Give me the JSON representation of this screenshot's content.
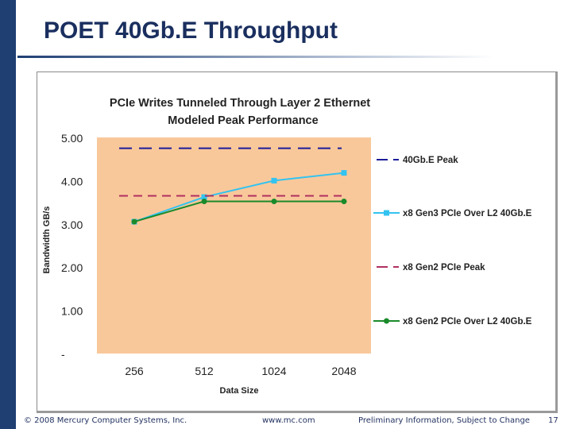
{
  "slide": {
    "title": "POET 40Gb.E Throughput",
    "footer_left": "© 2008 Mercury Computer Systems, Inc.",
    "footer_center": "www.mc.com",
    "footer_right": "Preliminary Information, Subject to Change",
    "page_number": "17"
  },
  "colors": {
    "plot_bg": "#f9c89a",
    "navy": "#1f3f73"
  },
  "chart_data": {
    "type": "line",
    "title": "PCIe Writes Tunneled Through Layer 2 Ethernet",
    "subtitle": "Modeled Peak Performance",
    "xlabel": "Data Size",
    "ylabel": "Bandwidth GB/s",
    "categories": [
      "256",
      "512",
      "1024",
      "2048"
    ],
    "ylim": [
      0,
      5
    ],
    "yticks": [
      0,
      1,
      2,
      3,
      4,
      5
    ],
    "ytick_labels": [
      "-",
      "1.00",
      "2.00",
      "3.00",
      "4.00",
      "5.00"
    ],
    "legend_position": "right",
    "series": [
      {
        "name": "40Gb.E Peak",
        "style": "dashed",
        "color": "#1c1c9a",
        "values": [
          4.75,
          4.75,
          4.75,
          4.75
        ],
        "markers": false
      },
      {
        "name": "x8 Gen3 PCIe Over L2 40Gb.E",
        "style": "solid",
        "color": "#33c3f0",
        "marker": "square",
        "values": [
          3.05,
          3.62,
          4.0,
          4.18
        ],
        "markers": true
      },
      {
        "name": "x8 Gen2 PCIe Peak",
        "style": "dashed",
        "color": "#b03060",
        "values": [
          3.65,
          3.65,
          3.65,
          3.65
        ],
        "markers": false
      },
      {
        "name": "x8 Gen2 PCIe Over L2 40Gb.E",
        "style": "solid",
        "color": "#1a8a2a",
        "marker": "circle",
        "values": [
          3.05,
          3.52,
          3.52,
          3.52
        ],
        "markers": true
      }
    ]
  }
}
